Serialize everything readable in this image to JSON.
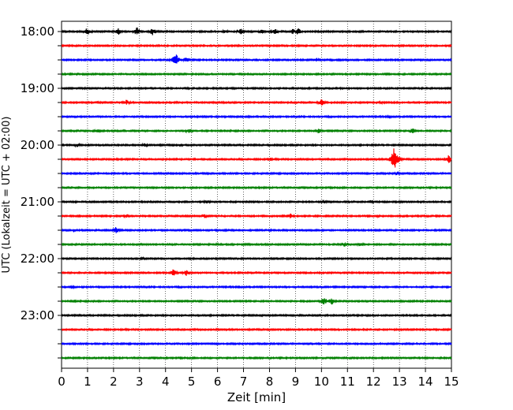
{
  "chart_data": {
    "type": "line",
    "title": "",
    "xlabel": "Zeit  [min]",
    "ylabel": "UTC (Lokalzeit = UTC + 02:00)",
    "x_ticks": [
      "0",
      "1",
      "2",
      "3",
      "4",
      "5",
      "6",
      "7",
      "8",
      "9",
      "10",
      "11",
      "12",
      "13",
      "14",
      "15"
    ],
    "xlim": [
      0,
      15
    ],
    "y_tick_labels": [
      "18:00",
      "19:00",
      "20:00",
      "21:00",
      "22:00",
      "23:00"
    ],
    "grid_x": "dotted",
    "trace_interval_min": 15,
    "trace_colors": [
      "#000000",
      "#ff0000",
      "#0000ff",
      "#008000"
    ],
    "traces": [
      {
        "start": "18:00",
        "color": "#000000",
        "events": [
          {
            "t": 1.0,
            "amp": 6
          },
          {
            "t": 2.2,
            "amp": 5
          },
          {
            "t": 2.9,
            "amp": 6
          },
          {
            "t": 3.5,
            "amp": 5
          },
          {
            "t": 6.3,
            "amp": 3
          },
          {
            "t": 6.9,
            "amp": 5
          },
          {
            "t": 7.7,
            "amp": 4
          },
          {
            "t": 8.2,
            "amp": 5
          },
          {
            "t": 8.9,
            "amp": 4
          },
          {
            "t": 9.1,
            "amp": 5
          }
        ]
      },
      {
        "start": "18:15",
        "color": "#ff0000",
        "events": []
      },
      {
        "start": "18:30",
        "color": "#0000ff",
        "events": [
          {
            "t": 4.4,
            "amp": 10
          },
          {
            "t": 4.8,
            "amp": 4
          },
          {
            "t": 9.8,
            "amp": 3
          }
        ]
      },
      {
        "start": "18:45",
        "color": "#008000",
        "events": []
      },
      {
        "start": "19:00",
        "color": "#000000",
        "events": []
      },
      {
        "start": "19:15",
        "color": "#ff0000",
        "events": [
          {
            "t": 1.4,
            "amp": 2
          },
          {
            "t": 2.5,
            "amp": 4
          },
          {
            "t": 10.0,
            "amp": 5
          },
          {
            "t": 12.3,
            "amp": 2
          }
        ]
      },
      {
        "start": "19:30",
        "color": "#0000ff",
        "events": [
          {
            "t": 12.6,
            "amp": 2
          }
        ]
      },
      {
        "start": "19:45",
        "color": "#008000",
        "events": [
          {
            "t": 1.4,
            "amp": 3
          },
          {
            "t": 4.9,
            "amp": 4
          },
          {
            "t": 9.9,
            "amp": 5
          },
          {
            "t": 13.5,
            "amp": 4
          }
        ]
      },
      {
        "start": "20:00",
        "color": "#000000",
        "events": [
          {
            "t": 0.6,
            "amp": 3
          },
          {
            "t": 3.2,
            "amp": 3
          },
          {
            "t": 4.6,
            "amp": 2
          }
        ]
      },
      {
        "start": "20:15",
        "color": "#ff0000",
        "events": [
          {
            "t": 8.0,
            "amp": 3
          },
          {
            "t": 12.8,
            "amp": 18
          },
          {
            "t": 14.9,
            "amp": 6
          }
        ]
      },
      {
        "start": "20:30",
        "color": "#0000ff",
        "events": [
          {
            "t": 12.9,
            "amp": 3
          }
        ]
      },
      {
        "start": "20:45",
        "color": "#008000",
        "events": []
      },
      {
        "start": "21:00",
        "color": "#000000",
        "events": [
          {
            "t": 5.6,
            "amp": 3
          },
          {
            "t": 10.1,
            "amp": 3
          },
          {
            "t": 11.9,
            "amp": 3
          }
        ]
      },
      {
        "start": "21:15",
        "color": "#ff0000",
        "events": [
          {
            "t": 2.5,
            "amp": 3
          },
          {
            "t": 5.5,
            "amp": 3
          },
          {
            "t": 8.8,
            "amp": 4
          },
          {
            "t": 12.2,
            "amp": 2
          }
        ]
      },
      {
        "start": "21:30",
        "color": "#0000ff",
        "events": [
          {
            "t": 0.5,
            "amp": 2
          },
          {
            "t": 2.1,
            "amp": 5
          }
        ]
      },
      {
        "start": "21:45",
        "color": "#008000",
        "events": [
          {
            "t": 6.0,
            "amp": 2
          },
          {
            "t": 10.0,
            "amp": 2
          },
          {
            "t": 10.9,
            "amp": 4
          },
          {
            "t": 11.5,
            "amp": 3
          }
        ]
      },
      {
        "start": "22:00",
        "color": "#000000",
        "events": [
          {
            "t": 3.1,
            "amp": 2
          }
        ]
      },
      {
        "start": "22:15",
        "color": "#ff0000",
        "events": [
          {
            "t": 4.3,
            "amp": 5
          },
          {
            "t": 4.8,
            "amp": 4
          }
        ]
      },
      {
        "start": "22:30",
        "color": "#0000ff",
        "events": [
          {
            "t": 0.4,
            "amp": 2
          }
        ]
      },
      {
        "start": "22:45",
        "color": "#008000",
        "events": [
          {
            "t": 0.5,
            "amp": 2
          },
          {
            "t": 10.1,
            "amp": 6
          },
          {
            "t": 10.4,
            "amp": 5
          }
        ]
      },
      {
        "start": "23:00",
        "color": "#000000",
        "events": []
      },
      {
        "start": "23:15",
        "color": "#ff0000",
        "events": [
          {
            "t": 6.0,
            "amp": 2
          }
        ]
      },
      {
        "start": "23:30",
        "color": "#0000ff",
        "events": []
      },
      {
        "start": "23:45",
        "color": "#008000",
        "events": []
      }
    ]
  }
}
